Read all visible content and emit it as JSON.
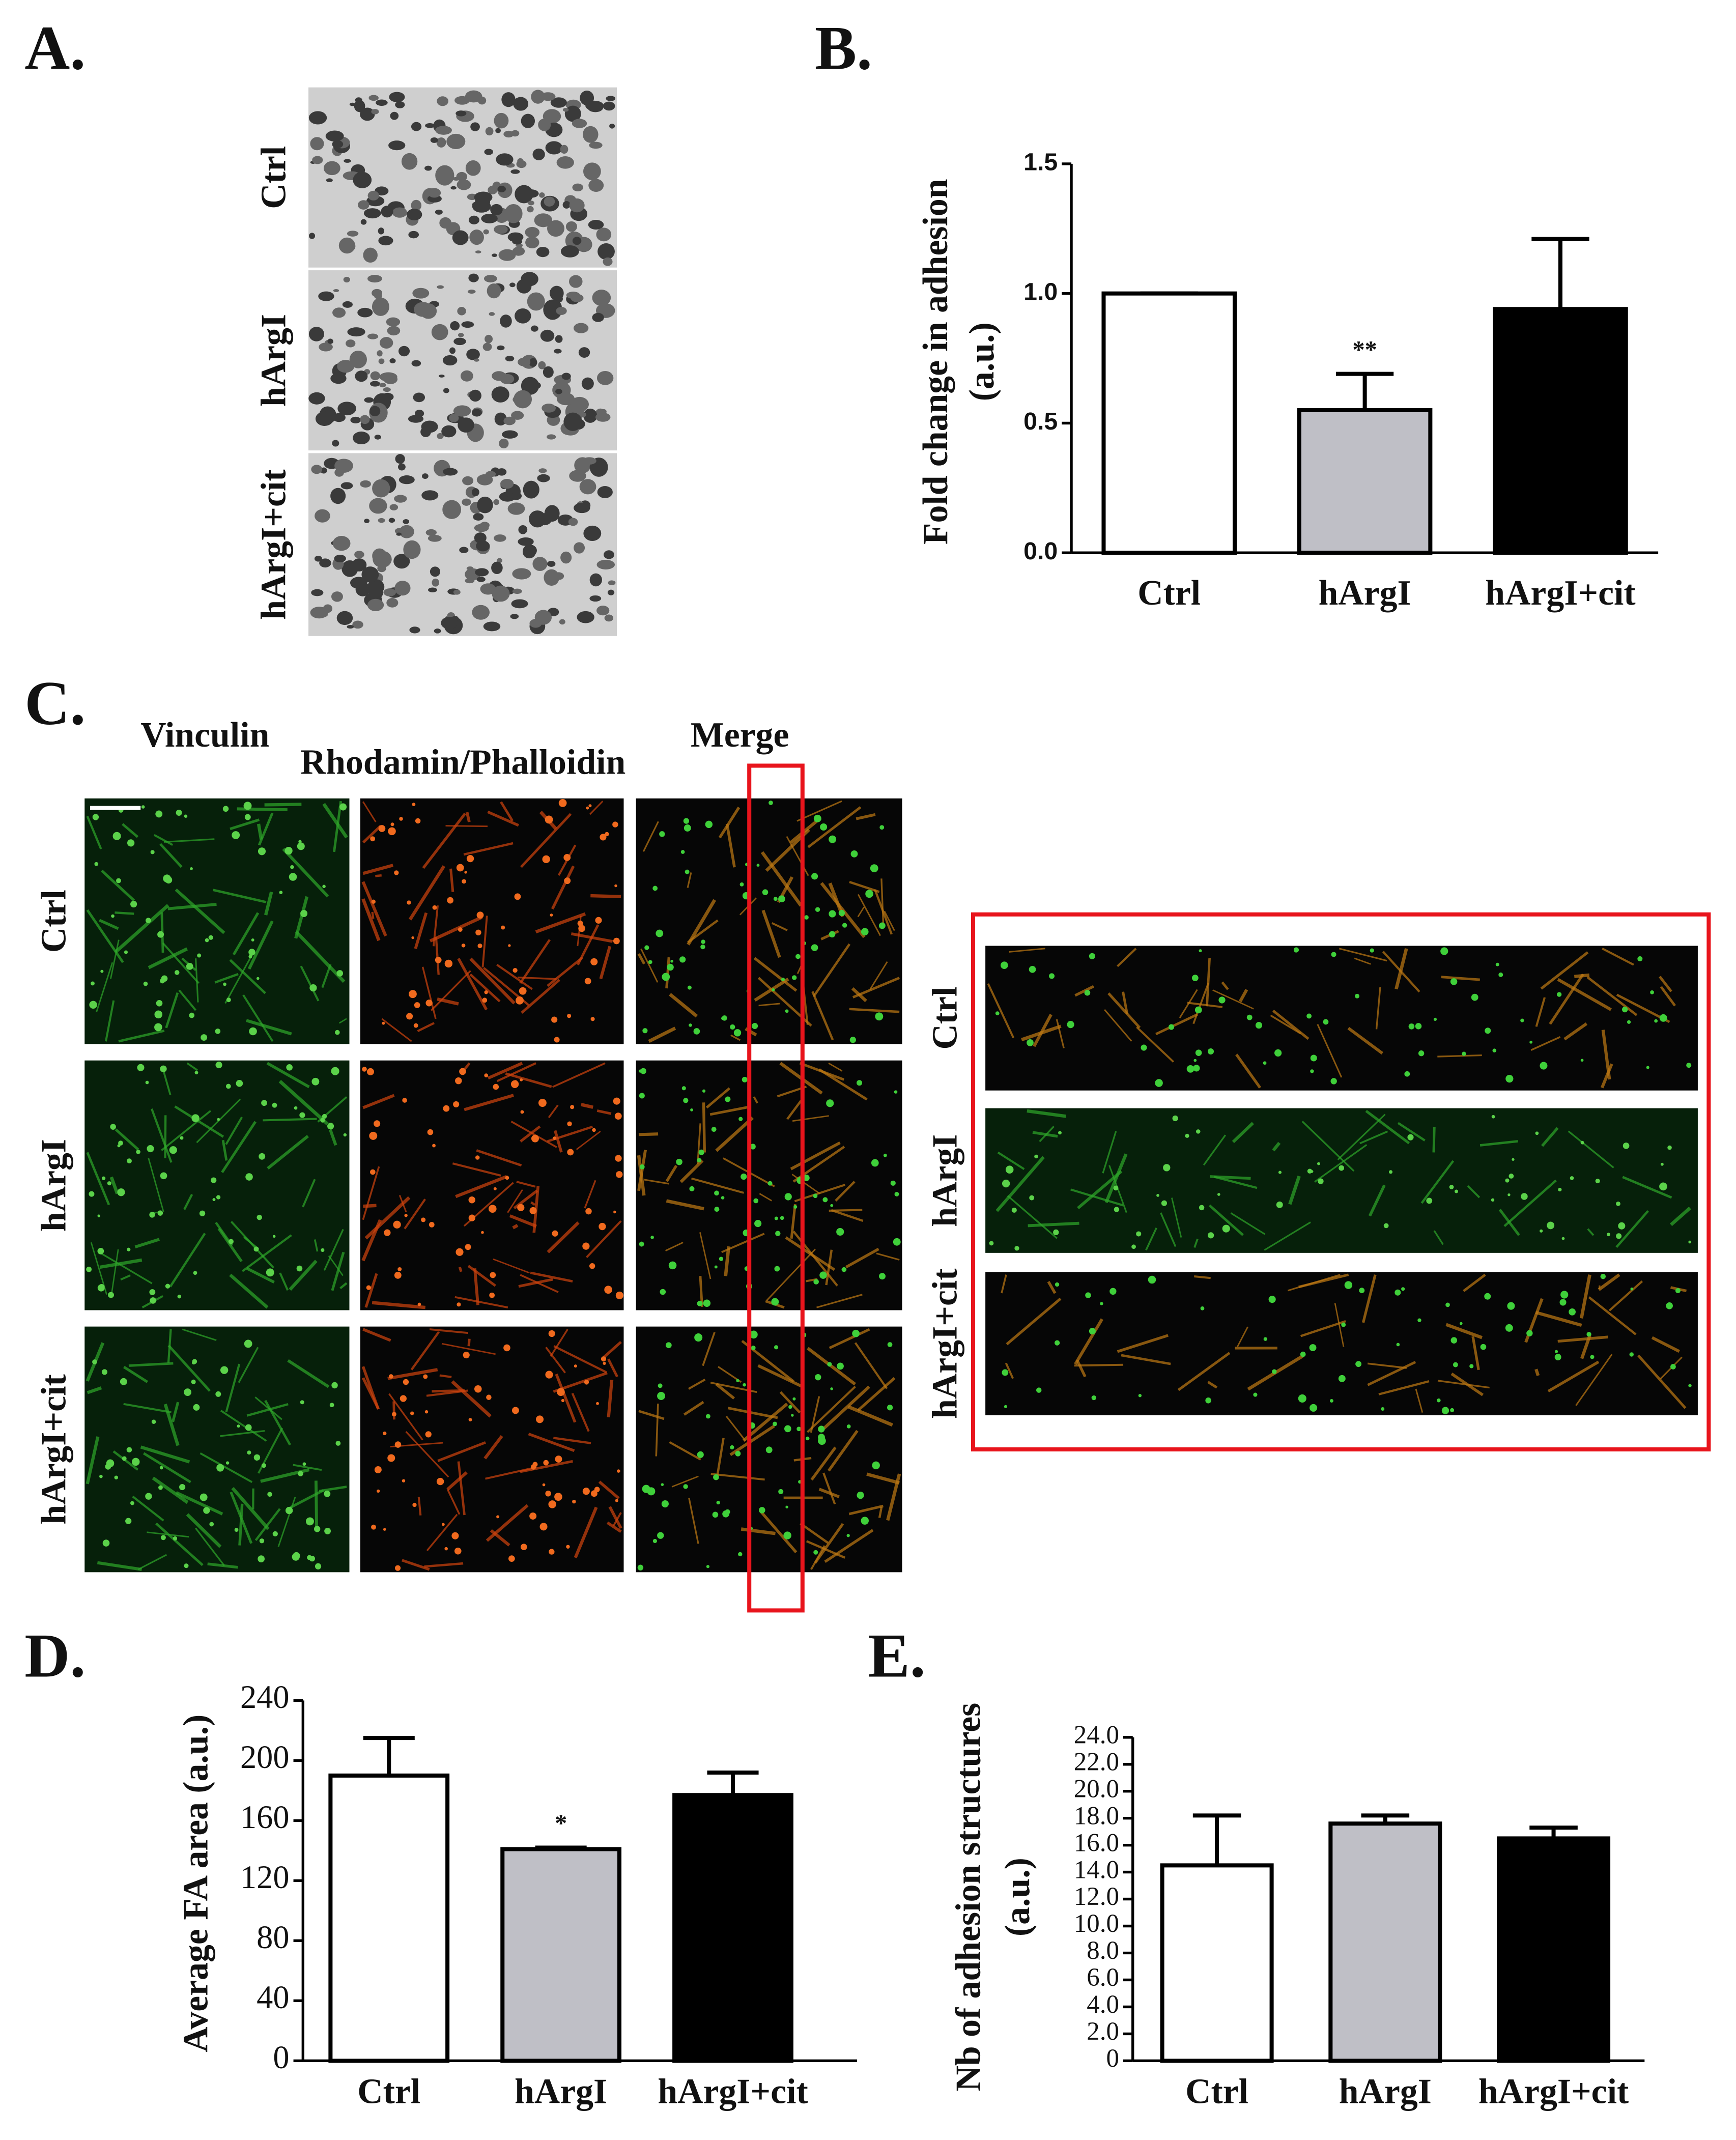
{
  "panels": {
    "A": {
      "label": "A.",
      "rows": [
        "Ctrl",
        "hArgI",
        "hArgI+cit"
      ]
    },
    "C": {
      "label": "C.",
      "columns": [
        "Vinculin",
        "Rhodamin/Phalloidin",
        "Merge"
      ],
      "rows": [
        "Ctrl",
        "hArgI",
        "hArgI+cit"
      ],
      "inset_rows": [
        "Ctrl",
        "hArgI",
        "hArgI+cit"
      ]
    }
  },
  "chart_data": [
    {
      "type": "bar",
      "panel": "B.",
      "ylabel": [
        "Fold change in adhesion",
        "(a.u.)"
      ],
      "categories": [
        "Ctrl",
        "hArgI",
        "hArgI+cit"
      ],
      "values": [
        1.0,
        0.55,
        0.94
      ],
      "errors": [
        0,
        0.14,
        0.27
      ],
      "colors": [
        "#ffffff",
        "#bfbfc6",
        "#000000"
      ],
      "annotations": [
        {
          "text": "**",
          "x": "hArgI"
        }
      ],
      "ylim": [
        0,
        1.5
      ],
      "yticks": [
        {
          "value": 0,
          "label": "0.0"
        },
        0.5,
        {
          "value": 1,
          "label": "1.0"
        },
        1.5
      ]
    },
    {
      "type": "bar",
      "panel": "D.",
      "ylabel": [
        "Average FA area (a.u.)"
      ],
      "categories": [
        "Ctrl",
        "hArgI",
        "hArgI+cit"
      ],
      "values": [
        190,
        141,
        177
      ],
      "errors": [
        25,
        1,
        15
      ],
      "colors": [
        "#ffffff",
        "#bfbfc6",
        "#000000"
      ],
      "annotations": [
        {
          "text": "*",
          "x": "hArgI"
        }
      ],
      "ylim": [
        0,
        240
      ],
      "yticks": [
        0,
        40,
        80,
        120,
        160,
        200,
        240
      ]
    },
    {
      "type": "bar",
      "panel": "E.",
      "ylabel": [
        "Nb of adhesion structures",
        "(a.u.)"
      ],
      "categories": [
        "Ctrl",
        "hArgI",
        "hArgI+cit"
      ],
      "values": [
        14.5,
        17.6,
        16.5
      ],
      "errors": [
        3.7,
        0.6,
        0.8
      ],
      "colors": [
        "#ffffff",
        "#bfbfc6",
        "#000000"
      ],
      "annotations": [],
      "ylim": [
        0,
        24
      ],
      "yticks": [
        0,
        {
          "value": 2,
          "label": "2.0"
        },
        {
          "value": 4,
          "label": "4.0"
        },
        {
          "value": 6,
          "label": "6.0"
        },
        {
          "value": 8,
          "label": "8.0"
        },
        {
          "value": 10,
          "label": "10.0"
        },
        {
          "value": 12,
          "label": "12.0"
        },
        {
          "value": 14,
          "label": "14.0"
        },
        {
          "value": 16,
          "label": "16.0"
        },
        {
          "value": 18,
          "label": "18.0"
        },
        {
          "value": 20,
          "label": "20.0"
        },
        {
          "value": 22,
          "label": "22.0"
        },
        {
          "value": 24,
          "label": "24.0"
        }
      ]
    }
  ]
}
